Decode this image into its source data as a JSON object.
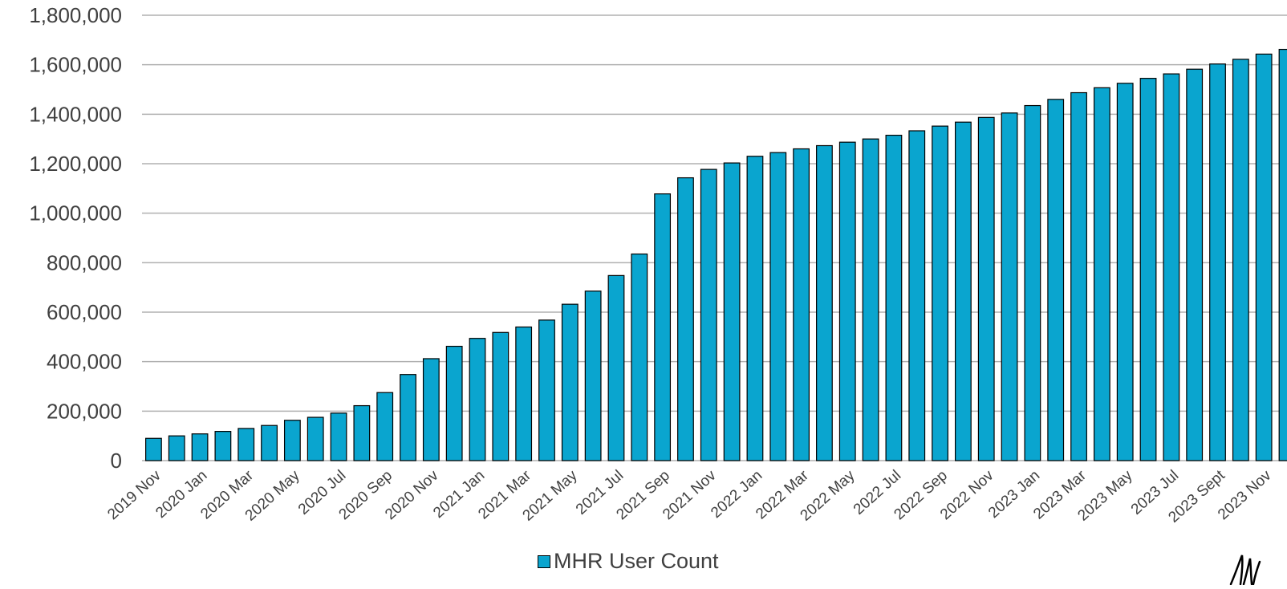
{
  "chart_data": {
    "type": "bar",
    "title": "",
    "xlabel": "",
    "ylabel": "",
    "ylim": [
      0,
      1800000
    ],
    "grid": true,
    "legend_position": "bottom",
    "y_ticks": [
      0,
      200000,
      400000,
      600000,
      800000,
      1000000,
      1200000,
      1400000,
      1600000,
      1800000
    ],
    "y_tick_labels": [
      "0",
      "200,000",
      "400,000",
      "600,000",
      "800,000",
      "1,000,000",
      "1,200,000",
      "1,400,000",
      "1,600,000",
      "1,800,000"
    ],
    "x_tick_labels": [
      "2019 Nov",
      "2020 Jan",
      "2020 Mar",
      "2020 May",
      "2020 Jul",
      "2020 Sep",
      "2020 Nov",
      "2021 Jan",
      "2021 Mar",
      "2021 May",
      "2021 Jul",
      "2021 Sep",
      "2021 Nov",
      "2022 Jan",
      "2022 Mar",
      "2022 May",
      "2022 Jul",
      "2022 Sep",
      "2022 Nov",
      "2023 Jan",
      "2023 Mar",
      "2023 May",
      "2023 Jul",
      "2023 Sept",
      "2023 Nov"
    ],
    "x_tick_every": 2,
    "series": [
      {
        "name": "MHR User Count",
        "color": "#0aa5cf",
        "values": [
          90000,
          100000,
          108000,
          118000,
          130000,
          142000,
          163000,
          175000,
          192000,
          222000,
          275000,
          348000,
          412000,
          462000,
          494000,
          518000,
          540000,
          568000,
          632000,
          685000,
          748000,
          835000,
          1078000,
          1143000,
          1177000,
          1203000,
          1230000,
          1245000,
          1260000,
          1273000,
          1287000,
          1300000,
          1315000,
          1333000,
          1352000,
          1368000,
          1387000,
          1405000,
          1435000,
          1460000,
          1487000,
          1507000,
          1525000,
          1545000,
          1563000,
          1582000,
          1603000,
          1622000,
          1643000,
          1662000
        ]
      }
    ]
  },
  "legend": {
    "label": "MHR User Count"
  },
  "style": {
    "bar_color": "#0aa5cf",
    "bar_outline": "#000000",
    "grid_color": "#b0b0b0",
    "text_color": "#404040"
  },
  "logo": {
    "icon": "signature-logo-icon"
  }
}
